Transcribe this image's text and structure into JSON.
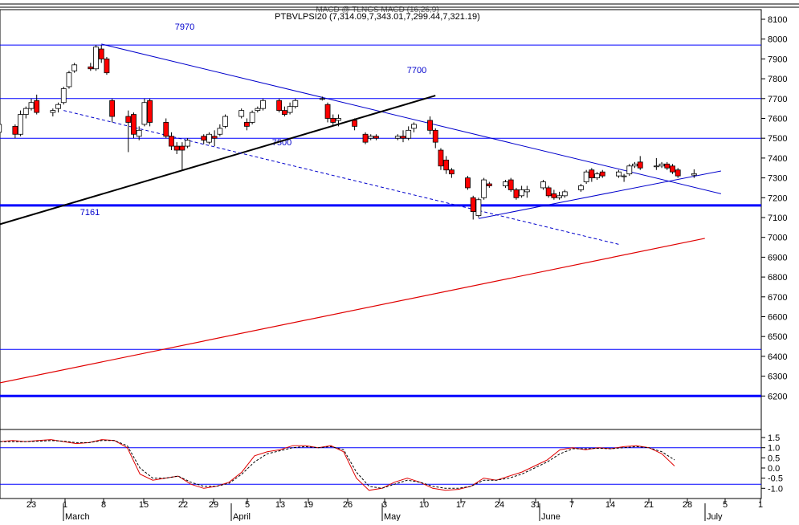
{
  "header": {
    "legend_overlap": "MACD @ TLNGS MACD (16,26,9)",
    "legend": "PTBVLPSI20 (7,314.09,7,343.01,7,299.44,7,321.19)"
  },
  "colors": {
    "up_candle": "#ffffff",
    "down_candle": "#ff0000",
    "trend_line": "#0000cc",
    "support_line": "#0000ff",
    "black_trend": "#000000",
    "long_ma": "#e00000",
    "stoch_k": "#e00000",
    "stoch_d": "#000000"
  },
  "chart_data": [
    {
      "type": "candlestick",
      "title": "",
      "ylim": [
        6000,
        8150
      ],
      "y_ticks": [
        "8100",
        "8000",
        "7900",
        "7800",
        "7700",
        "7600",
        "7500",
        "7400",
        "7300",
        "7200",
        "7100",
        "7000",
        "6900",
        "6800",
        "6700",
        "6600",
        "6500",
        "6400",
        "6300",
        "6200"
      ],
      "annotations": [
        "7970",
        "7700",
        "7500",
        "7161"
      ],
      "horizontal_levels": [
        7970,
        7700,
        7500,
        7161,
        6435,
        6200
      ],
      "trend_lines": [
        {
          "name": "falling resistance",
          "from": [
            "Mar 8",
            7975
          ],
          "to": [
            "Jul 1",
            7220
          ]
        },
        {
          "name": "rising trend",
          "from": [
            "Feb 17",
            7065
          ],
          "to": [
            "May 9",
            7715
          ]
        },
        {
          "name": "dashed support",
          "from": [
            "Mar 1",
            7640
          ],
          "to": [
            "Jun 12",
            6965
          ]
        },
        {
          "name": "rising support",
          "from": [
            "May 17",
            7095
          ],
          "to": [
            "Jul 1",
            7335
          ]
        }
      ],
      "moving_average": {
        "from": [
          "Feb 16",
          6260
        ],
        "to": [
          "Jun 28",
          6995
        ]
      },
      "series": [
        {
          "date": "Feb 16",
          "o": 7500,
          "h": 7580,
          "l": 7460,
          "c": 7580
        },
        {
          "date": "Feb 17",
          "o": 7530,
          "h": 7590,
          "l": 7500,
          "c": 7570
        },
        {
          "date": "Feb 20",
          "o": 7560,
          "h": 7570,
          "l": 7500,
          "c": 7520
        },
        {
          "date": "Feb 21",
          "o": 7520,
          "h": 7640,
          "l": 7510,
          "c": 7620
        },
        {
          "date": "Feb 22",
          "o": 7620,
          "h": 7660,
          "l": 7600,
          "c": 7650
        },
        {
          "date": "Feb 23",
          "o": 7650,
          "h": 7700,
          "l": 7640,
          "c": 7680
        },
        {
          "date": "Feb 24",
          "o": 7690,
          "h": 7720,
          "l": 7620,
          "c": 7630
        },
        {
          "date": "Feb 27",
          "o": 7630,
          "h": 7650,
          "l": 7610,
          "c": 7640
        },
        {
          "date": "Feb 28",
          "o": 7650,
          "h": 7680,
          "l": 7630,
          "c": 7670
        },
        {
          "date": "Mar 1",
          "o": 7680,
          "h": 7760,
          "l": 7670,
          "c": 7750
        },
        {
          "date": "Mar 2",
          "o": 7760,
          "h": 7840,
          "l": 7750,
          "c": 7830
        },
        {
          "date": "Mar 3",
          "o": 7840,
          "h": 7880,
          "l": 7830,
          "c": 7870
        },
        {
          "date": "Mar 6",
          "o": 7860,
          "h": 7880,
          "l": 7840,
          "c": 7850
        },
        {
          "date": "Mar 7",
          "o": 7850,
          "h": 7970,
          "l": 7840,
          "c": 7960
        },
        {
          "date": "Mar 8",
          "o": 7950,
          "h": 7970,
          "l": 7880,
          "c": 7900
        },
        {
          "date": "Mar 9",
          "o": 7900,
          "h": 7910,
          "l": 7820,
          "c": 7830
        },
        {
          "date": "Mar 10",
          "o": 7690,
          "h": 7700,
          "l": 7580,
          "c": 7610
        },
        {
          "date": "Mar 13",
          "o": 7610,
          "h": 7640,
          "l": 7430,
          "c": 7580
        },
        {
          "date": "Mar 14",
          "o": 7620,
          "h": 7630,
          "l": 7500,
          "c": 7520
        },
        {
          "date": "Mar 15",
          "o": 7510,
          "h": 7560,
          "l": 7490,
          "c": 7540
        },
        {
          "date": "Mar 16",
          "o": 7570,
          "h": 7700,
          "l": 7560,
          "c": 7680
        },
        {
          "date": "Mar 17",
          "o": 7690,
          "h": 7700,
          "l": 7560,
          "c": 7580
        },
        {
          "date": "Mar 20",
          "o": 7580,
          "h": 7600,
          "l": 7500,
          "c": 7510
        },
        {
          "date": "Mar 21",
          "o": 7510,
          "h": 7530,
          "l": 7440,
          "c": 7460
        },
        {
          "date": "Mar 22",
          "o": 7460,
          "h": 7480,
          "l": 7420,
          "c": 7440
        },
        {
          "date": "Mar 23",
          "o": 7460,
          "h": 7480,
          "l": 7340,
          "c": 7440
        },
        {
          "date": "Mar 24",
          "o": 7460,
          "h": 7500,
          "l": 7450,
          "c": 7490
        },
        {
          "date": "Mar 27",
          "o": 7510,
          "h": 7520,
          "l": 7470,
          "c": 7490
        },
        {
          "date": "Mar 28",
          "o": 7480,
          "h": 7530,
          "l": 7470,
          "c": 7520
        },
        {
          "date": "Mar 29",
          "o": 7510,
          "h": 7540,
          "l": 7460,
          "c": 7500
        },
        {
          "date": "Mar 30",
          "o": 7520,
          "h": 7570,
          "l": 7510,
          "c": 7550
        },
        {
          "date": "Mar 31",
          "o": 7560,
          "h": 7620,
          "l": 7550,
          "c": 7610
        },
        {
          "date": "Apr 3",
          "o": 7610,
          "h": 7650,
          "l": 7600,
          "c": 7640
        },
        {
          "date": "Apr 4",
          "o": 7580,
          "h": 7600,
          "l": 7540,
          "c": 7560
        },
        {
          "date": "Apr 5",
          "o": 7580,
          "h": 7640,
          "l": 7570,
          "c": 7630
        },
        {
          "date": "Apr 6",
          "o": 7640,
          "h": 7660,
          "l": 7630,
          "c": 7650
        },
        {
          "date": "Apr 7",
          "o": 7650,
          "h": 7700,
          "l": 7640,
          "c": 7690
        },
        {
          "date": "Apr 10",
          "o": 7690,
          "h": 7700,
          "l": 7630,
          "c": 7640
        },
        {
          "date": "Apr 11",
          "o": 7640,
          "h": 7660,
          "l": 7610,
          "c": 7620
        },
        {
          "date": "Apr 12",
          "o": 7630,
          "h": 7680,
          "l": 7620,
          "c": 7660
        },
        {
          "date": "Apr 13",
          "o": 7660,
          "h": 7700,
          "l": 7650,
          "c": 7690
        },
        {
          "date": "Apr 18",
          "o": 7700,
          "h": 7710,
          "l": 7690,
          "c": 7700
        },
        {
          "date": "Apr 19",
          "o": 7670,
          "h": 7680,
          "l": 7580,
          "c": 7600
        },
        {
          "date": "Apr 20",
          "o": 7600,
          "h": 7620,
          "l": 7560,
          "c": 7580
        },
        {
          "date": "Apr 21",
          "o": 7590,
          "h": 7620,
          "l": 7560,
          "c": 7600
        },
        {
          "date": "Apr 24",
          "o": 7590,
          "h": 7600,
          "l": 7540,
          "c": 7560
        },
        {
          "date": "Apr 26",
          "o": 7520,
          "h": 7530,
          "l": 7470,
          "c": 7480
        },
        {
          "date": "Apr 27",
          "o": 7500,
          "h": 7520,
          "l": 7490,
          "c": 7510
        },
        {
          "date": "Apr 28",
          "o": 7510,
          "h": 7520,
          "l": 7490,
          "c": 7500
        },
        {
          "date": "May 2",
          "o": 7500,
          "h": 7520,
          "l": 7490,
          "c": 7510
        },
        {
          "date": "May 3",
          "o": 7510,
          "h": 7540,
          "l": 7480,
          "c": 7500
        },
        {
          "date": "May 4",
          "o": 7500,
          "h": 7560,
          "l": 7490,
          "c": 7540
        },
        {
          "date": "May 5",
          "o": 7550,
          "h": 7580,
          "l": 7530,
          "c": 7570
        },
        {
          "date": "May 8",
          "o": 7590,
          "h": 7610,
          "l": 7520,
          "c": 7540
        },
        {
          "date": "May 9",
          "o": 7540,
          "h": 7550,
          "l": 7450,
          "c": 7480
        },
        {
          "date": "May 10",
          "o": 7440,
          "h": 7450,
          "l": 7340,
          "c": 7360
        },
        {
          "date": "May 11",
          "o": 7390,
          "h": 7410,
          "l": 7320,
          "c": 7340
        },
        {
          "date": "May 12",
          "o": 7340,
          "h": 7350,
          "l": 7300,
          "c": 7320
        },
        {
          "date": "May 15",
          "o": 7300,
          "h": 7310,
          "l": 7240,
          "c": 7250
        },
        {
          "date": "May 16",
          "o": 7200,
          "h": 7210,
          "l": 7090,
          "c": 7130
        },
        {
          "date": "May 17",
          "o": 7110,
          "h": 7200,
          "l": 7100,
          "c": 7190
        },
        {
          "date": "May 18",
          "o": 7200,
          "h": 7300,
          "l": 7190,
          "c": 7290
        },
        {
          "date": "May 19",
          "o": 7270,
          "h": 7280,
          "l": 7250,
          "c": 7260
        },
        {
          "date": "May 22",
          "o": 7260,
          "h": 7290,
          "l": 7250,
          "c": 7280
        },
        {
          "date": "May 23",
          "o": 7290,
          "h": 7300,
          "l": 7230,
          "c": 7240
        },
        {
          "date": "May 24",
          "o": 7240,
          "h": 7250,
          "l": 7190,
          "c": 7200
        },
        {
          "date": "May 25",
          "o": 7210,
          "h": 7260,
          "l": 7200,
          "c": 7240
        },
        {
          "date": "May 26",
          "o": 7230,
          "h": 7260,
          "l": 7200,
          "c": 7240
        },
        {
          "date": "May 29",
          "o": 7250,
          "h": 7290,
          "l": 7240,
          "c": 7280
        },
        {
          "date": "May 30",
          "o": 7250,
          "h": 7260,
          "l": 7200,
          "c": 7210
        },
        {
          "date": "May 31",
          "o": 7220,
          "h": 7240,
          "l": 7190,
          "c": 7200
        },
        {
          "date": "Jun 1",
          "o": 7200,
          "h": 7230,
          "l": 7190,
          "c": 7210
        },
        {
          "date": "Jun 2",
          "o": 7210,
          "h": 7240,
          "l": 7200,
          "c": 7230
        },
        {
          "date": "Jun 5",
          "o": 7240,
          "h": 7270,
          "l": 7230,
          "c": 7260
        },
        {
          "date": "Jun 6",
          "o": 7280,
          "h": 7340,
          "l": 7270,
          "c": 7330
        },
        {
          "date": "Jun 7",
          "o": 7340,
          "h": 7350,
          "l": 7280,
          "c": 7300
        },
        {
          "date": "Jun 8",
          "o": 7300,
          "h": 7330,
          "l": 7290,
          "c": 7320
        },
        {
          "date": "Jun 9",
          "o": 7330,
          "h": 7340,
          "l": 7300,
          "c": 7310
        },
        {
          "date": "Jun 12",
          "o": 7310,
          "h": 7340,
          "l": 7300,
          "c": 7330
        },
        {
          "date": "Jun 13",
          "o": 7310,
          "h": 7320,
          "l": 7280,
          "c": 7310
        },
        {
          "date": "Jun 14",
          "o": 7320,
          "h": 7370,
          "l": 7310,
          "c": 7360
        },
        {
          "date": "Jun 15",
          "o": 7360,
          "h": 7380,
          "l": 7350,
          "c": 7370
        },
        {
          "date": "Jun 16",
          "o": 7380,
          "h": 7410,
          "l": 7340,
          "c": 7350
        },
        {
          "date": "Jun 19",
          "o": 7360,
          "h": 7400,
          "l": 7340,
          "c": 7360
        },
        {
          "date": "Jun 20",
          "o": 7360,
          "h": 7380,
          "l": 7350,
          "c": 7370
        },
        {
          "date": "Jun 21",
          "o": 7370,
          "h": 7380,
          "l": 7340,
          "c": 7350
        },
        {
          "date": "Jun 22",
          "o": 7360,
          "h": 7370,
          "l": 7320,
          "c": 7330
        },
        {
          "date": "Jun 23",
          "o": 7340,
          "h": 7350,
          "l": 7300,
          "c": 7310
        },
        {
          "date": "Jun 26",
          "o": 7314.09,
          "h": 7343.01,
          "l": 7299.44,
          "c": 7321.19
        }
      ]
    },
    {
      "type": "line",
      "title": "",
      "ylim": [
        -1.3,
        1.8
      ],
      "y_ticks": [
        "1.5",
        "1.0",
        "0.5",
        "0.0",
        "-0.5",
        "-1.0"
      ],
      "horizontal_levels": [
        1.0,
        -0.8
      ],
      "series": [
        {
          "values": [
            1.3,
            1.35,
            1.3,
            1.35,
            1.4,
            1.3,
            1.2,
            1.25,
            1.4,
            1.35,
            1.0,
            -0.3,
            -0.6,
            -0.5,
            -0.4,
            -0.8,
            -1.0,
            -0.9,
            -0.7,
            -0.2,
            0.6,
            0.8,
            0.9,
            1.1,
            1.1,
            1.0,
            1.1,
            0.8,
            -0.5,
            -1.1,
            -1.0,
            -0.7,
            -0.5,
            -0.7,
            -1.0,
            -1.1,
            -1.05,
            -0.9,
            -0.5,
            -0.6,
            -0.4,
            -0.2,
            0.1,
            0.4,
            0.9,
            1.0,
            0.9,
            1.0,
            0.95,
            1.05,
            1.1,
            1.0,
            0.7,
            0.1
          ]
        },
        {
          "values": [
            1.3,
            1.3,
            1.3,
            1.32,
            1.35,
            1.32,
            1.25,
            1.25,
            1.35,
            1.35,
            1.1,
            0.0,
            -0.5,
            -0.5,
            -0.4,
            -0.7,
            -0.9,
            -0.9,
            -0.75,
            -0.3,
            0.3,
            0.7,
            0.85,
            1.0,
            1.05,
            1.0,
            1.05,
            0.9,
            -0.2,
            -0.9,
            -1.0,
            -0.8,
            -0.6,
            -0.7,
            -0.9,
            -1.0,
            -1.0,
            -0.9,
            -0.6,
            -0.6,
            -0.5,
            -0.3,
            0.0,
            0.3,
            0.7,
            0.95,
            0.95,
            0.97,
            0.95,
            1.0,
            1.05,
            1.0,
            0.8,
            0.4
          ]
        }
      ]
    }
  ],
  "x_axis": {
    "ticks": [
      "23",
      "1",
      "8",
      "15",
      "22",
      "29",
      "5",
      "13",
      "19",
      "26",
      "3",
      "10",
      "17",
      "24",
      "31",
      "7",
      "14",
      "21",
      "28",
      "5",
      "1"
    ],
    "months": [
      "March",
      "April",
      "May",
      "June",
      "July"
    ]
  }
}
